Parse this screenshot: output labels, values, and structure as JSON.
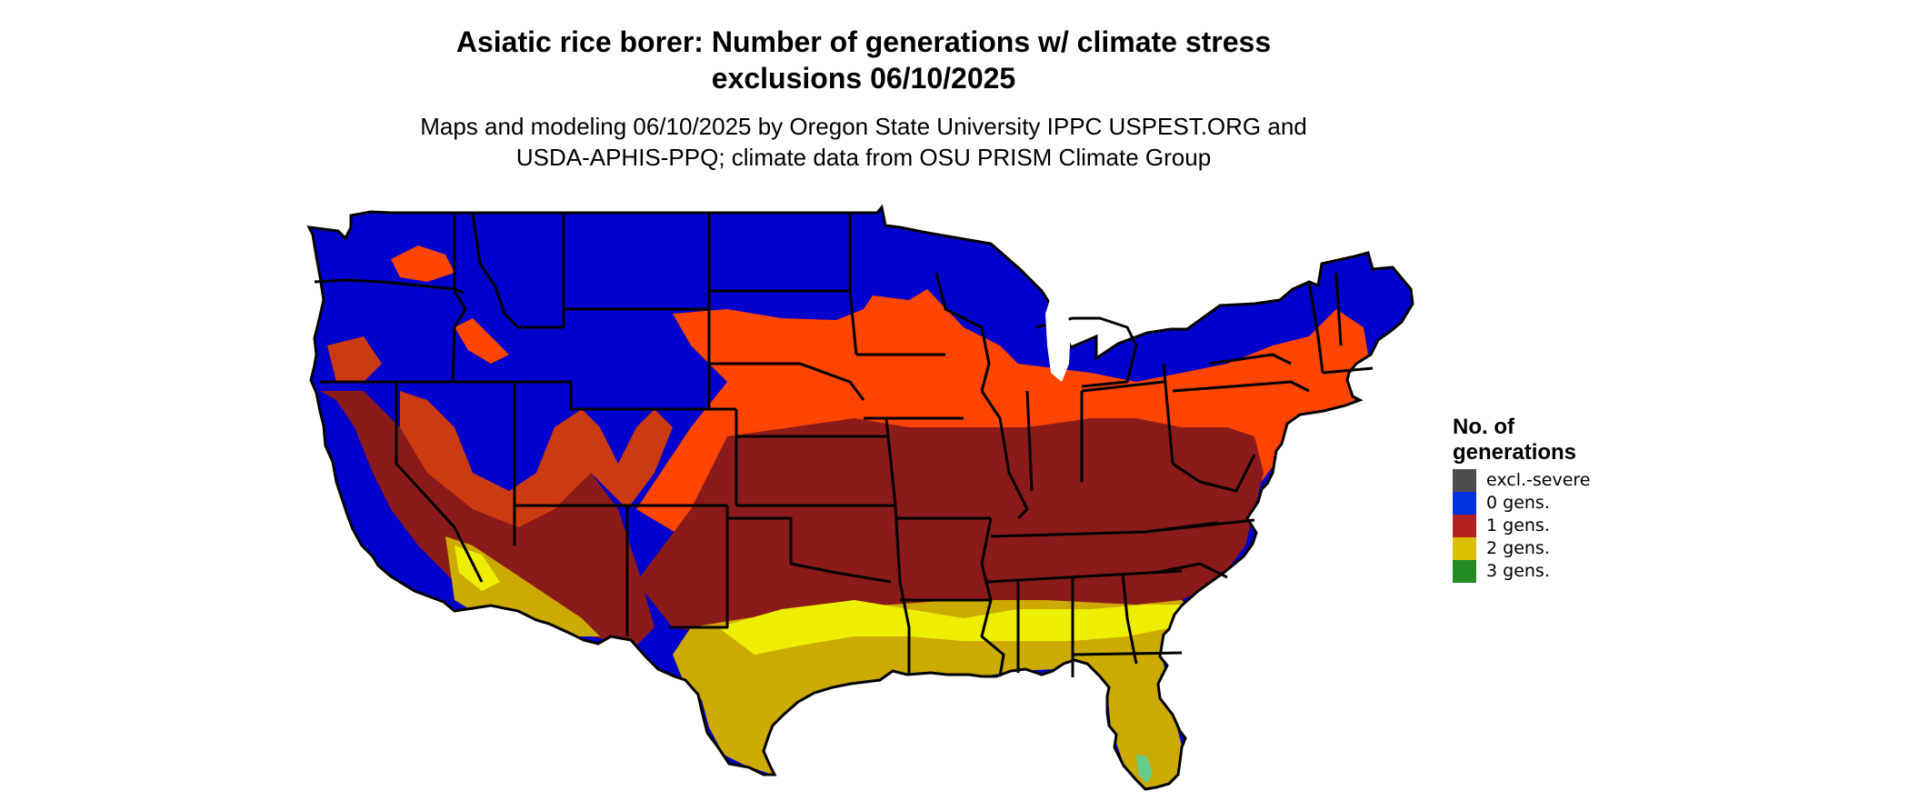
{
  "map": {
    "title_line1": "Asiatic rice borer: Number of generations w/ climate stress",
    "title_line2": "exclusions 06/10/2025",
    "subtitle_line1": "Maps and modeling 06/10/2025 by Oregon State University IPPC USPEST.ORG and",
    "subtitle_line2": "USDA-APHIS-PPQ; climate data from OSU PRISM Climate Group",
    "region": "contiguous United States",
    "boundaries": "state outlines"
  },
  "legend": {
    "title_line1": "No. of",
    "title_line2": "generations",
    "items": [
      {
        "label": "excl.-severe",
        "color": "#4d4d4d"
      },
      {
        "label": "0 gens.",
        "color": "#0033dd"
      },
      {
        "label": "1 gens.",
        "color": "#b22222"
      },
      {
        "label": "2 gens.",
        "color": "#dcc000"
      },
      {
        "label": "3 gens.",
        "color": "#228b22"
      }
    ]
  },
  "palette": {
    "zero_gen_region": "#0000cc",
    "one_gen_light": "#ff4500",
    "one_gen_mid": "#cc3a10",
    "one_gen_dark": "#8b1a1a",
    "two_gen_bright": "#eeee00",
    "two_gen": "#ccaa00",
    "three_gen": "#66cc88",
    "state_lines": "#000000"
  }
}
